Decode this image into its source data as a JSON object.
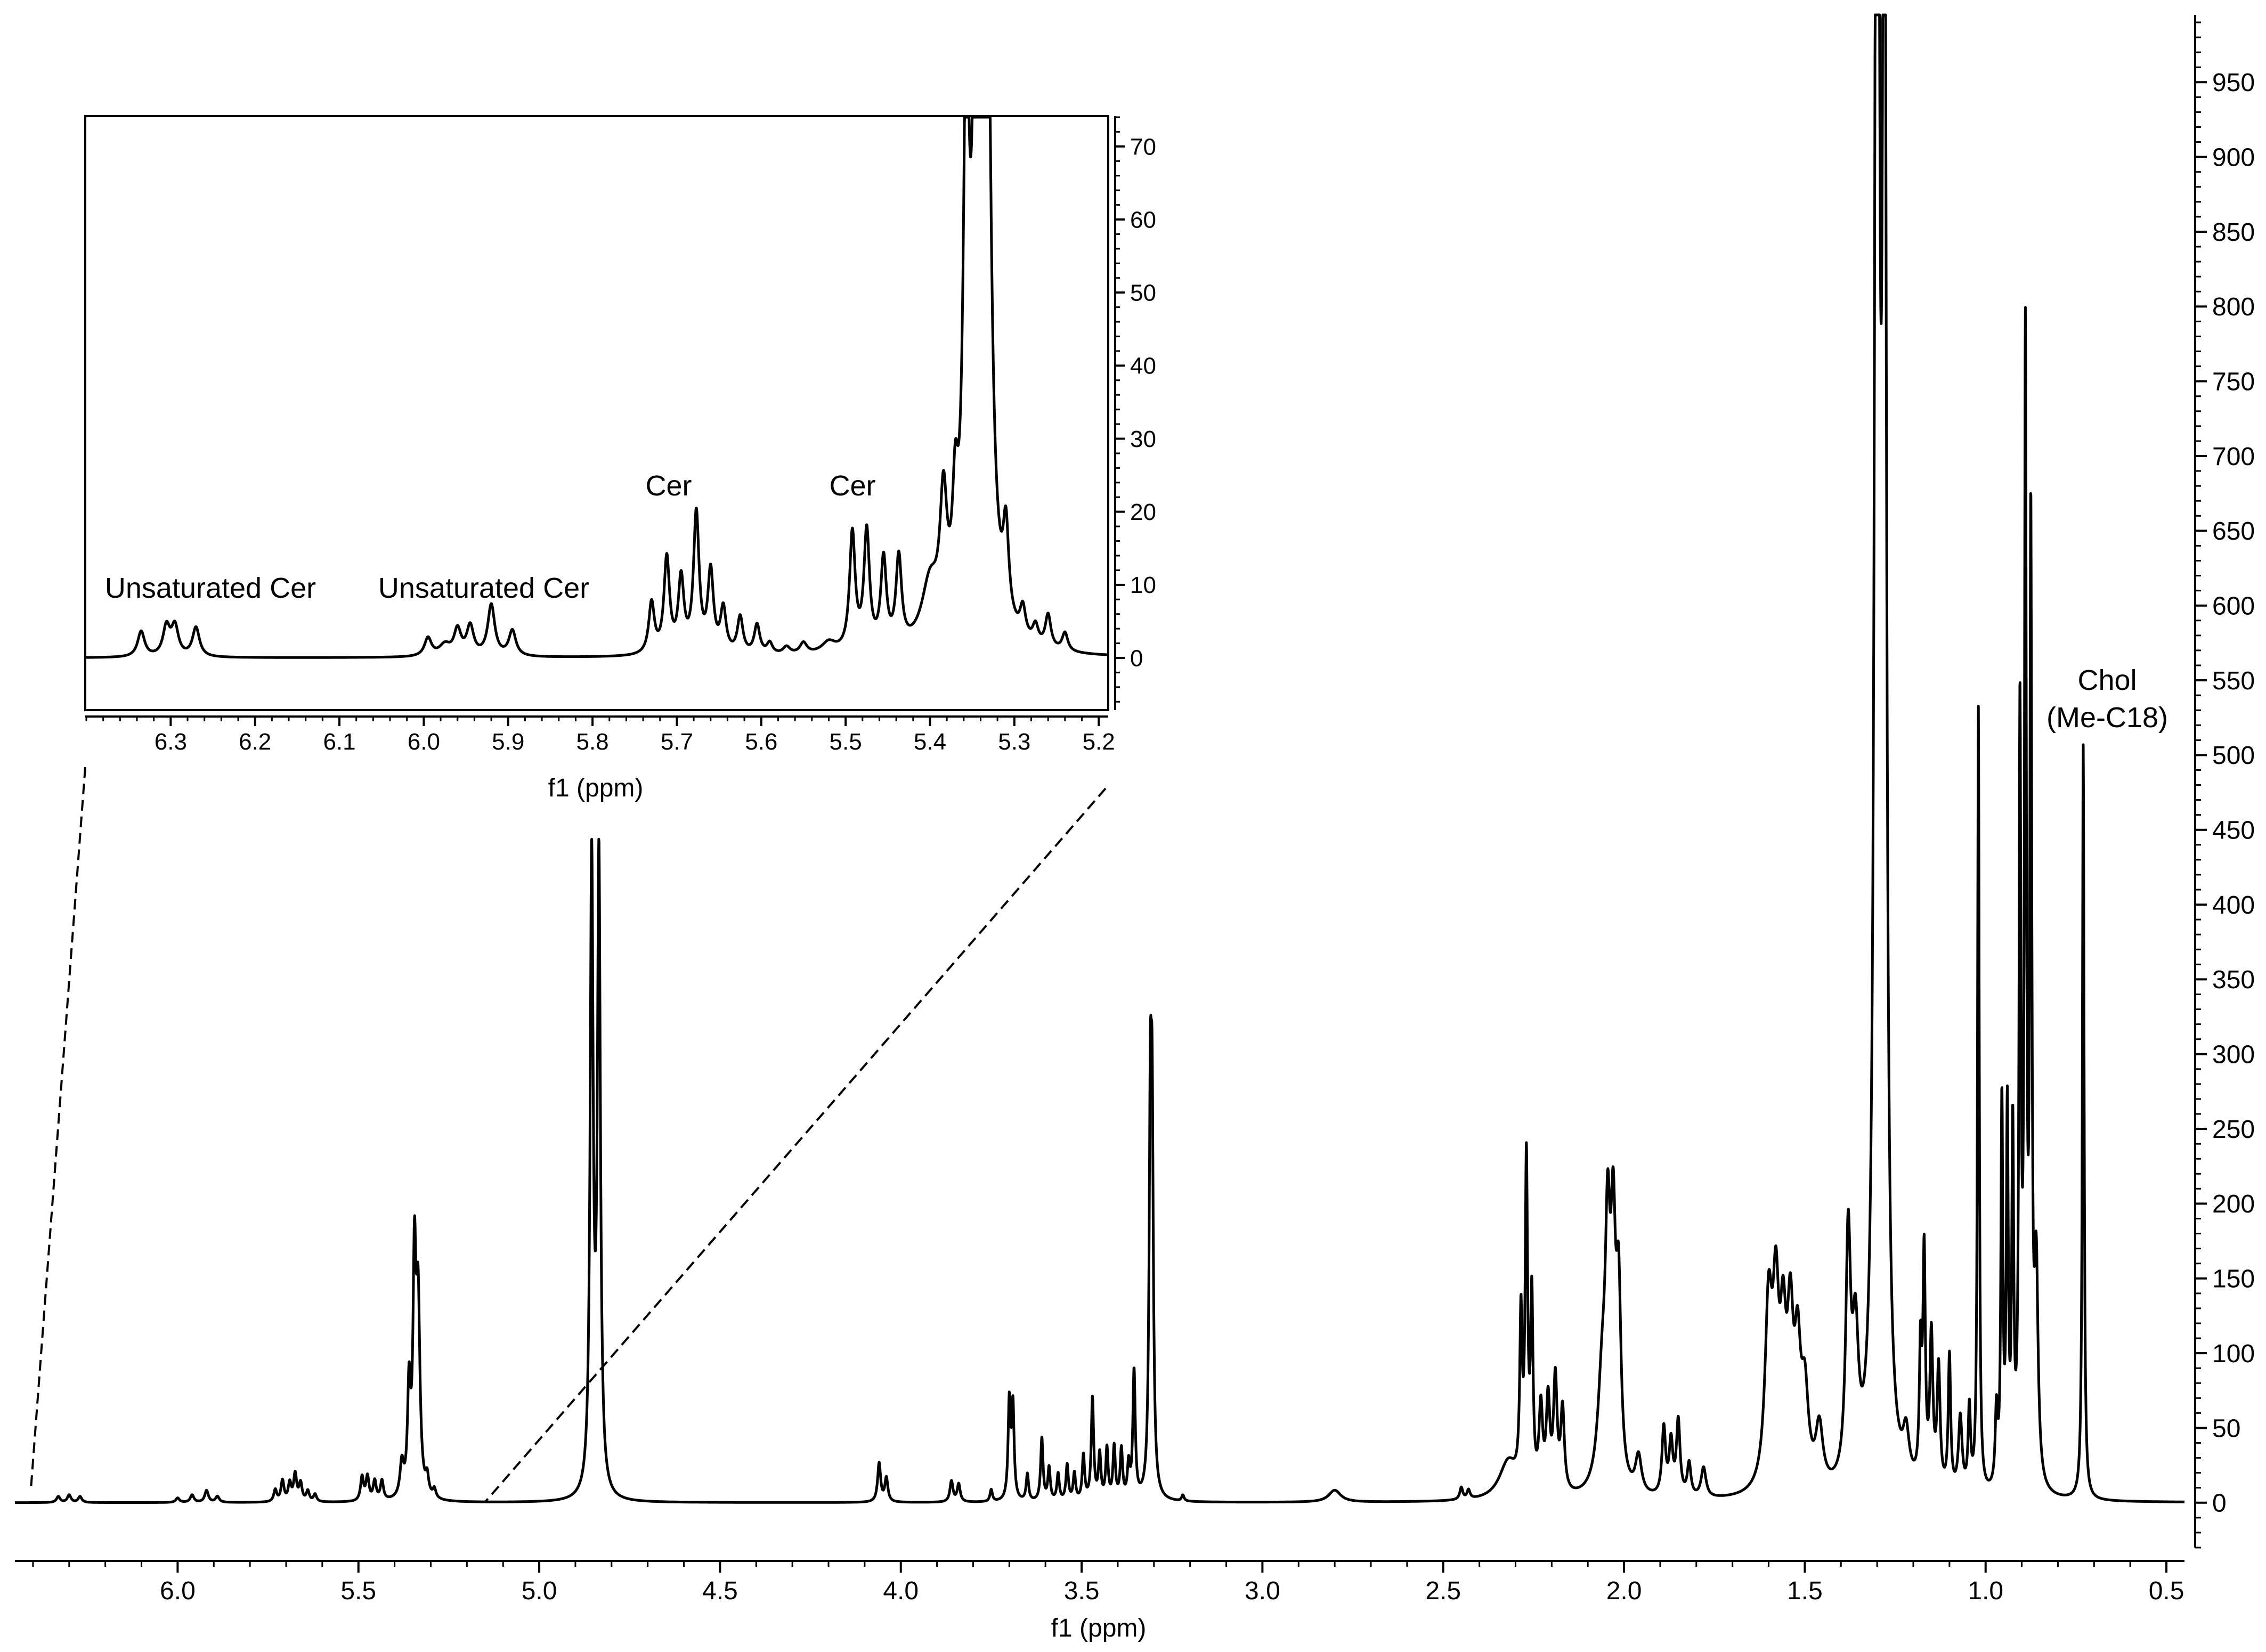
{
  "chart_data": [
    {
      "id": "main",
      "type": "line",
      "title": "",
      "xlabel": "f1 (ppm)",
      "ylabel": "",
      "xlim": [
        6.45,
        0.45
      ],
      "ylim": [
        -30,
        995
      ],
      "x_reversed": true,
      "y_axis_side": "right",
      "grid": false,
      "x_ticks": [
        6.0,
        5.5,
        5.0,
        4.5,
        4.0,
        3.5,
        3.0,
        2.5,
        2.0,
        1.5,
        1.0,
        0.5
      ],
      "x_tick_labels": [
        "6.0",
        "5.5",
        "5.0",
        "4.5",
        "4.0",
        "3.5",
        "3.0",
        "2.5",
        "2.0",
        "1.5",
        "1.0",
        "0.5"
      ],
      "y_ticks": [
        0,
        50,
        100,
        150,
        200,
        250,
        300,
        350,
        400,
        450,
        500,
        550,
        600,
        650,
        700,
        750,
        800,
        850,
        900,
        950
      ],
      "y_tick_labels": [
        "0",
        "50",
        "100",
        "150",
        "200",
        "250",
        "300",
        "350",
        "400",
        "450",
        "500",
        "550",
        "600",
        "650",
        "700",
        "750",
        "800",
        "850",
        "900",
        "950"
      ],
      "annotations": [
        {
          "text_line1": "Chol",
          "text_line2": "(Me-C18)",
          "x": 0.73,
          "y": 550
        }
      ],
      "series": [
        {
          "peaks": [
            {
              "x": 6.33,
              "y": 4,
              "w": 0.006
            },
            {
              "x": 6.3,
              "y": 5,
              "w": 0.006
            },
            {
              "x": 6.27,
              "y": 4,
              "w": 0.006
            },
            {
              "x": 6.0,
              "y": 3,
              "w": 0.006
            },
            {
              "x": 5.96,
              "y": 5,
              "w": 0.006
            },
            {
              "x": 5.92,
              "y": 8,
              "w": 0.006
            },
            {
              "x": 5.89,
              "y": 4,
              "w": 0.006
            },
            {
              "x": 5.73,
              "y": 8,
              "w": 0.005
            },
            {
              "x": 5.71,
              "y": 14,
              "w": 0.005
            },
            {
              "x": 5.69,
              "y": 12,
              "w": 0.005
            },
            {
              "x": 5.675,
              "y": 18,
              "w": 0.005
            },
            {
              "x": 5.66,
              "y": 12,
              "w": 0.005
            },
            {
              "x": 5.64,
              "y": 7,
              "w": 0.005
            },
            {
              "x": 5.62,
              "y": 5,
              "w": 0.005
            },
            {
              "x": 5.49,
              "y": 16,
              "w": 0.005
            },
            {
              "x": 5.475,
              "y": 16,
              "w": 0.005
            },
            {
              "x": 5.455,
              "y": 13,
              "w": 0.005
            },
            {
              "x": 5.435,
              "y": 13,
              "w": 0.005
            },
            {
              "x": 5.38,
              "y": 22,
              "w": 0.006
            },
            {
              "x": 5.36,
              "y": 70,
              "w": 0.005
            },
            {
              "x": 5.345,
              "y": 150,
              "w": 0.005
            },
            {
              "x": 5.335,
              "y": 125,
              "w": 0.006
            },
            {
              "x": 5.31,
              "y": 12,
              "w": 0.005
            },
            {
              "x": 5.29,
              "y": 6,
              "w": 0.005
            },
            {
              "x": 4.855,
              "y": 420,
              "w": 0.005
            },
            {
              "x": 4.835,
              "y": 420,
              "w": 0.005
            },
            {
              "x": 4.06,
              "y": 26,
              "w": 0.005
            },
            {
              "x": 4.04,
              "y": 16,
              "w": 0.005
            },
            {
              "x": 3.86,
              "y": 14,
              "w": 0.005
            },
            {
              "x": 3.84,
              "y": 12,
              "w": 0.005
            },
            {
              "x": 3.75,
              "y": 8,
              "w": 0.004
            },
            {
              "x": 3.7,
              "y": 65,
              "w": 0.004
            },
            {
              "x": 3.69,
              "y": 62,
              "w": 0.004
            },
            {
              "x": 3.65,
              "y": 18,
              "w": 0.004
            },
            {
              "x": 3.61,
              "y": 42,
              "w": 0.004
            },
            {
              "x": 3.59,
              "y": 22,
              "w": 0.004
            },
            {
              "x": 3.565,
              "y": 18,
              "w": 0.004
            },
            {
              "x": 3.54,
              "y": 24,
              "w": 0.004
            },
            {
              "x": 3.52,
              "y": 18,
              "w": 0.004
            },
            {
              "x": 3.495,
              "y": 30,
              "w": 0.004
            },
            {
              "x": 3.47,
              "y": 68,
              "w": 0.004
            },
            {
              "x": 3.45,
              "y": 30,
              "w": 0.004
            },
            {
              "x": 3.43,
              "y": 34,
              "w": 0.004
            },
            {
              "x": 3.41,
              "y": 35,
              "w": 0.004
            },
            {
              "x": 3.39,
              "y": 33,
              "w": 0.004
            },
            {
              "x": 3.37,
              "y": 22,
              "w": 0.004
            },
            {
              "x": 3.355,
              "y": 85,
              "w": 0.004
            },
            {
              "x": 3.31,
              "y": 228,
              "w": 0.004
            },
            {
              "x": 3.305,
              "y": 220,
              "w": 0.004
            },
            {
              "x": 3.22,
              "y": 4,
              "w": 0.004
            },
            {
              "x": 2.8,
              "y": 8,
              "w": 0.02
            },
            {
              "x": 2.45,
              "y": 8,
              "w": 0.005
            },
            {
              "x": 2.43,
              "y": 6,
              "w": 0.005
            },
            {
              "x": 2.32,
              "y": 25,
              "w": 0.03
            },
            {
              "x": 2.285,
              "y": 110,
              "w": 0.004
            },
            {
              "x": 2.27,
              "y": 215,
              "w": 0.004
            },
            {
              "x": 2.255,
              "y": 125,
              "w": 0.004
            },
            {
              "x": 2.23,
              "y": 55,
              "w": 0.006
            },
            {
              "x": 2.21,
              "y": 60,
              "w": 0.006
            },
            {
              "x": 2.19,
              "y": 75,
              "w": 0.006
            },
            {
              "x": 2.17,
              "y": 55,
              "w": 0.006
            },
            {
              "x": 2.045,
              "y": 145,
              "w": 0.008
            },
            {
              "x": 2.03,
              "y": 150,
              "w": 0.008
            },
            {
              "x": 2.015,
              "y": 120,
              "w": 0.008
            },
            {
              "x": 2.06,
              "y": 70,
              "w": 0.015
            },
            {
              "x": 1.96,
              "y": 25,
              "w": 0.01
            },
            {
              "x": 1.89,
              "y": 45,
              "w": 0.006
            },
            {
              "x": 1.87,
              "y": 35,
              "w": 0.006
            },
            {
              "x": 1.85,
              "y": 50,
              "w": 0.006
            },
            {
              "x": 1.82,
              "y": 22,
              "w": 0.006
            },
            {
              "x": 1.78,
              "y": 20,
              "w": 0.008
            },
            {
              "x": 1.6,
              "y": 120,
              "w": 0.012
            },
            {
              "x": 1.58,
              "y": 110,
              "w": 0.01
            },
            {
              "x": 1.56,
              "y": 90,
              "w": 0.01
            },
            {
              "x": 1.54,
              "y": 100,
              "w": 0.01
            },
            {
              "x": 1.52,
              "y": 80,
              "w": 0.01
            },
            {
              "x": 1.5,
              "y": 60,
              "w": 0.012
            },
            {
              "x": 1.46,
              "y": 40,
              "w": 0.012
            },
            {
              "x": 1.38,
              "y": 160,
              "w": 0.008
            },
            {
              "x": 1.36,
              "y": 90,
              "w": 0.01
            },
            {
              "x": 1.3,
              "y": 1800,
              "w": 0.006
            },
            {
              "x": 1.28,
              "y": 1200,
              "w": 0.006
            },
            {
              "x": 1.22,
              "y": 30,
              "w": 0.01
            },
            {
              "x": 1.18,
              "y": 85,
              "w": 0.004
            },
            {
              "x": 1.17,
              "y": 150,
              "w": 0.004
            },
            {
              "x": 1.15,
              "y": 100,
              "w": 0.005
            },
            {
              "x": 1.13,
              "y": 80,
              "w": 0.005
            },
            {
              "x": 1.1,
              "y": 90,
              "w": 0.004
            },
            {
              "x": 1.07,
              "y": 50,
              "w": 0.006
            },
            {
              "x": 1.045,
              "y": 55,
              "w": 0.004
            },
            {
              "x": 1.02,
              "y": 525,
              "w": 0.0028
            },
            {
              "x": 0.97,
              "y": 50,
              "w": 0.004
            },
            {
              "x": 0.955,
              "y": 255,
              "w": 0.0032
            },
            {
              "x": 0.94,
              "y": 245,
              "w": 0.0032
            },
            {
              "x": 0.925,
              "y": 230,
              "w": 0.0032
            },
            {
              "x": 0.905,
              "y": 500,
              "w": 0.0032
            },
            {
              "x": 0.89,
              "y": 740,
              "w": 0.0032
            },
            {
              "x": 0.875,
              "y": 620,
              "w": 0.0032
            },
            {
              "x": 0.86,
              "y": 140,
              "w": 0.006
            },
            {
              "x": 0.73,
              "y": 505,
              "w": 0.0028
            }
          ]
        }
      ]
    },
    {
      "id": "inset",
      "type": "line",
      "title": "",
      "xlabel": "f1 (ppm)",
      "ylabel": "",
      "xlim": [
        6.4,
        5.19
      ],
      "ylim": [
        -7,
        74
      ],
      "x_reversed": true,
      "y_axis_side": "right",
      "grid": false,
      "x_ticks": [
        6.3,
        6.2,
        6.1,
        6.0,
        5.9,
        5.8,
        5.7,
        5.6,
        5.5,
        5.4,
        5.3,
        5.2
      ],
      "x_tick_labels": [
        "6.3",
        "6.2",
        "6.1",
        "6.0",
        "5.9",
        "5.8",
        "5.7",
        "5.6",
        "5.5",
        "5.4",
        "5.3",
        "5.2"
      ],
      "y_ticks": [
        0,
        10,
        20,
        30,
        40,
        50,
        60,
        70
      ],
      "y_tick_labels": [
        "0",
        "10",
        "20",
        "30",
        "40",
        "50",
        "60",
        "70"
      ],
      "annotations": [
        {
          "text": "Unsaturated Cer",
          "x": 6.265,
          "y": 6
        },
        {
          "text": "Unsaturated Cer",
          "x": 5.95,
          "y": 6
        },
        {
          "text": "Cer",
          "x": 5.695,
          "y": 20
        },
        {
          "text": "Cer",
          "x": 5.465,
          "y": 20
        }
      ],
      "series": [
        {
          "peaks": [
            {
              "x": 6.335,
              "y": 3.5,
              "w": 0.005
            },
            {
              "x": 6.305,
              "y": 4.0,
              "w": 0.005
            },
            {
              "x": 6.295,
              "y": 4.0,
              "w": 0.005
            },
            {
              "x": 6.27,
              "y": 4.0,
              "w": 0.005
            },
            {
              "x": 5.995,
              "y": 2.5,
              "w": 0.005
            },
            {
              "x": 5.975,
              "y": 1.5,
              "w": 0.008
            },
            {
              "x": 5.96,
              "y": 3.5,
              "w": 0.005
            },
            {
              "x": 5.945,
              "y": 4.0,
              "w": 0.005
            },
            {
              "x": 5.92,
              "y": 7.0,
              "w": 0.005
            },
            {
              "x": 5.895,
              "y": 3.5,
              "w": 0.005
            },
            {
              "x": 5.73,
              "y": 7.0,
              "w": 0.004
            },
            {
              "x": 5.712,
              "y": 13.0,
              "w": 0.004
            },
            {
              "x": 5.695,
              "y": 10.0,
              "w": 0.004
            },
            {
              "x": 5.677,
              "y": 19.0,
              "w": 0.004
            },
            {
              "x": 5.66,
              "y": 11.0,
              "w": 0.004
            },
            {
              "x": 5.645,
              "y": 6.0,
              "w": 0.004
            },
            {
              "x": 5.625,
              "y": 5.0,
              "w": 0.004
            },
            {
              "x": 5.605,
              "y": 4.0,
              "w": 0.004
            },
            {
              "x": 5.59,
              "y": 1.5,
              "w": 0.004
            },
            {
              "x": 5.57,
              "y": 1.0,
              "w": 0.005
            },
            {
              "x": 5.55,
              "y": 1.5,
              "w": 0.005
            },
            {
              "x": 5.52,
              "y": 1.5,
              "w": 0.01
            },
            {
              "x": 5.492,
              "y": 16.0,
              "w": 0.004
            },
            {
              "x": 5.475,
              "y": 16.0,
              "w": 0.004
            },
            {
              "x": 5.455,
              "y": 12.0,
              "w": 0.004
            },
            {
              "x": 5.437,
              "y": 12.0,
              "w": 0.004
            },
            {
              "x": 5.4,
              "y": 8.0,
              "w": 0.012
            },
            {
              "x": 5.384,
              "y": 17.0,
              "w": 0.005
            },
            {
              "x": 5.37,
              "y": 14.0,
              "w": 0.004
            },
            {
              "x": 5.357,
              "y": 70.0,
              "w": 0.004
            },
            {
              "x": 5.343,
              "y": 140.0,
              "w": 0.005
            },
            {
              "x": 5.333,
              "y": 100.0,
              "w": 0.005
            },
            {
              "x": 5.31,
              "y": 12.0,
              "w": 0.004
            },
            {
              "x": 5.29,
              "y": 4.0,
              "w": 0.004
            },
            {
              "x": 5.275,
              "y": 2.5,
              "w": 0.004
            },
            {
              "x": 5.26,
              "y": 4.5,
              "w": 0.004
            },
            {
              "x": 5.24,
              "y": 2.5,
              "w": 0.004
            }
          ]
        }
      ]
    }
  ]
}
